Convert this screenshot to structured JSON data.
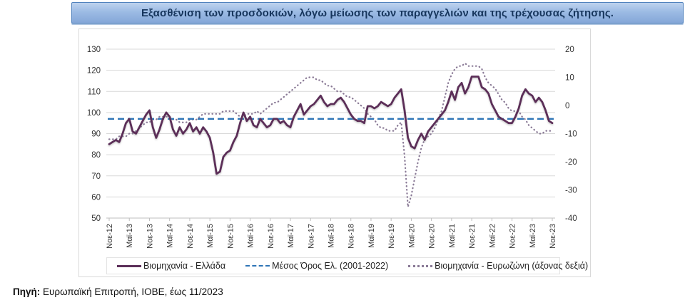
{
  "header": {
    "title": "Εξασθένιση των προσδοκιών, λόγω μείωσης των παραγγελιών και της τρέχουσας ζήτησης."
  },
  "footer": {
    "label": "Πηγή:",
    "text": " Ευρωπαϊκή Επιτροπή, ΙΟΒΕ, έως 11/2023"
  },
  "colors": {
    "greece_line": "#5c2e59",
    "mean_line": "#2e75b6",
    "eurozone_line": "#8a7a96",
    "gridline": "#d9d9d9",
    "axis_line": "#bfbfbf",
    "axis_text": "#333333",
    "title_text": "#17365d",
    "title_border": "#4f81bd",
    "panel_border": "#d9d9d9"
  },
  "chart_data": {
    "type": "line",
    "title": "Εξασθένιση των προσδοκιών, λόγω μείωσης των παραγγελιών και της τρέχουσας ζήτησης.",
    "xlabel": "",
    "ylabel_left": "",
    "ylabel_right": "",
    "grid": true,
    "legend_position": "bottom",
    "left_axis": {
      "min": 50,
      "max": 130,
      "ticks": [
        130,
        120,
        110,
        100,
        90,
        80,
        70,
        60,
        50
      ]
    },
    "right_axis": {
      "min": -40,
      "max": 20,
      "ticks": [
        20,
        10,
        0,
        -10,
        -20,
        -30,
        -40
      ]
    },
    "x_tick_labels": [
      "Νοε-12",
      "Μαϊ-13",
      "Νοε-13",
      "Μαϊ-14",
      "Νοε-14",
      "Μαϊ-15",
      "Νοε-15",
      "Μαϊ-16",
      "Νοε-16",
      "Μαϊ-17",
      "Νοε-17",
      "Μαϊ-18",
      "Νοε-18",
      "Μαϊ-19",
      "Νοε-19",
      "Μαϊ-20",
      "Νοε-20",
      "Μαϊ-21",
      "Νοε-21",
      "Μαϊ-22",
      "Νοε-22",
      "Μαϊ-23",
      "Νοε-23"
    ],
    "months_per_tick": 6,
    "frequency": "monthly",
    "period": "Νοε-2012 έως Νοε-2023",
    "series": [
      {
        "name": "Βιομηχανία  - Ελλάδα",
        "axis": "left",
        "style": "solid",
        "color": "#5c2e59",
        "values": [
          85,
          86,
          87,
          86,
          90,
          95,
          97,
          91,
          90,
          93,
          96,
          99,
          101,
          93,
          88,
          92,
          97,
          100,
          98,
          92,
          89,
          93,
          90,
          92,
          95,
          91,
          93,
          90,
          93,
          91,
          88,
          81,
          71,
          72,
          79,
          81,
          82,
          86,
          89,
          95,
          100,
          96,
          98,
          94,
          93,
          97,
          95,
          93,
          94,
          97,
          97,
          95,
          96,
          94,
          93,
          98,
          101,
          104,
          99,
          101,
          103,
          104,
          106,
          108,
          105,
          103,
          104,
          104,
          106,
          107,
          105,
          102,
          99,
          97,
          96,
          96,
          95,
          103,
          103,
          102,
          103,
          105,
          104,
          103,
          104,
          107,
          109,
          111,
          101,
          88,
          84,
          83,
          87,
          90,
          87,
          91,
          93,
          95,
          97,
          99,
          101,
          105,
          110,
          106,
          112,
          114,
          109,
          112,
          117,
          117,
          117,
          112,
          111,
          109,
          104,
          101,
          98,
          97,
          96,
          95,
          95,
          98,
          102,
          108,
          111,
          109,
          108,
          105,
          107,
          105,
          101,
          96,
          95
        ]
      },
      {
        "name": "Μέσος Όρος Ελ. (2001-2022)",
        "axis": "left",
        "style": "dashed",
        "color": "#2e75b6",
        "constant": 97
      },
      {
        "name": "Βιομηχανία - Ευρωζώνη (άξονας δεξιά)",
        "axis": "right",
        "style": "dotted",
        "color": "#8a7a96",
        "values": [
          -12,
          -12,
          -12,
          -11,
          -11,
          -11,
          -10,
          -10,
          -9,
          -8,
          -7,
          -6,
          -6,
          -5,
          -5,
          -4,
          -4,
          -4,
          -4,
          -5,
          -5,
          -6,
          -6,
          -6,
          -5,
          -5,
          -5,
          -4,
          -3,
          -3,
          -3,
          -3,
          -3,
          -3,
          -2,
          -2,
          -2,
          -2,
          -3,
          -4,
          -4,
          -3,
          -3,
          -3,
          -2,
          -3,
          -2,
          -1,
          0,
          1,
          1,
          2,
          3,
          4,
          5,
          6,
          7,
          8,
          9,
          10,
          10,
          10,
          9,
          9,
          8,
          7,
          7,
          6,
          5,
          5,
          4,
          3,
          3,
          2,
          1,
          0,
          -1,
          -3,
          -4,
          -5,
          -7,
          -8,
          -8,
          -9,
          -9,
          -9,
          -7,
          -6,
          -18,
          -36,
          -32,
          -26,
          -20,
          -15,
          -12,
          -11,
          -10,
          -8,
          -5,
          -2,
          3,
          8,
          11,
          13,
          14,
          14,
          15,
          14,
          14,
          14,
          14,
          13,
          10,
          8,
          7,
          6,
          4,
          2,
          1,
          -1,
          -2,
          -2,
          -2,
          -4,
          -5,
          -7,
          -8,
          -9,
          -10,
          -10,
          -9,
          -9,
          -9
        ]
      }
    ]
  }
}
